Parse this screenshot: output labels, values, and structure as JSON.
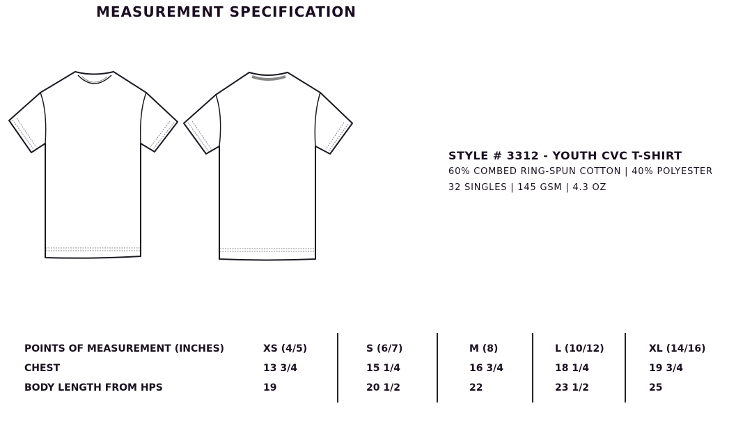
{
  "title": "MEASUREMENT SPECIFICATION",
  "style": {
    "heading": "STYLE # 3312 - YOUTH CVC T-SHIRT",
    "fabric": "60% COMBED RING-SPUN COTTON | 40% POLYESTER",
    "specs": "32 SINGLES | 145 GSM | 4.3 OZ"
  },
  "table": {
    "headers": [
      "POINTS OF MEASUREMENT (INCHES)",
      "XS (4/5)",
      "S (6/7)",
      "M (8)",
      "L (10/12)",
      "XL (14/16)"
    ],
    "rows": [
      [
        "CHEST",
        "13 3/4",
        "15 1/4",
        "16 3/4",
        "18 1/4",
        "19 3/4"
      ],
      [
        "BODY LENGTH FROM HPS",
        "19",
        "20 1/2",
        "22",
        "23 1/2",
        "25"
      ]
    ]
  }
}
